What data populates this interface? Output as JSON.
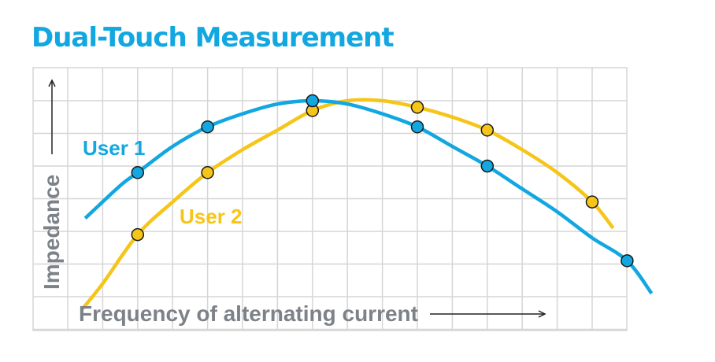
{
  "title": "Dual-Touch Measurement",
  "colors": {
    "title": "#12a7e0",
    "user1": "#12a7e0",
    "user2": "#f5c518",
    "grid": "#d6d6d6",
    "axis_text": "#7d8288"
  },
  "chart_data": {
    "type": "line",
    "title": "Dual-Touch Measurement",
    "xlabel": "Frequency of alternating current",
    "ylabel": "Impedance",
    "xlim": [
      0,
      16
    ],
    "ylim": [
      0,
      8
    ],
    "grid": true,
    "x_ticks_labeled": false,
    "y_ticks_labeled": false,
    "series": [
      {
        "name": "User 1",
        "color": "#12a7e0",
        "points": [
          [
            2,
            4.8
          ],
          [
            4,
            6.2
          ],
          [
            7,
            7.0
          ],
          [
            10,
            6.2
          ],
          [
            12,
            5.0
          ],
          [
            16,
            2.1
          ]
        ],
        "curve": [
          [
            0.5,
            3.4
          ],
          [
            1.5,
            4.4
          ],
          [
            2,
            4.8
          ],
          [
            3,
            5.6
          ],
          [
            4,
            6.2
          ],
          [
            5,
            6.6
          ],
          [
            6,
            6.9
          ],
          [
            7,
            7.0
          ],
          [
            8,
            6.9
          ],
          [
            9,
            6.6
          ],
          [
            10,
            6.2
          ],
          [
            11,
            5.6
          ],
          [
            12,
            5.0
          ],
          [
            13,
            4.3
          ],
          [
            14,
            3.6
          ],
          [
            15,
            2.8
          ],
          [
            16,
            2.1
          ],
          [
            16.7,
            1.1
          ]
        ]
      },
      {
        "name": "User 2",
        "color": "#f5c518",
        "points": [
          [
            2,
            2.9
          ],
          [
            4,
            4.8
          ],
          [
            7,
            6.7
          ],
          [
            10,
            6.8
          ],
          [
            12,
            6.1
          ],
          [
            15,
            3.9
          ]
        ],
        "curve": [
          [
            0.4,
            0.6
          ],
          [
            1,
            1.4
          ],
          [
            2,
            2.9
          ],
          [
            3,
            3.9
          ],
          [
            4,
            4.8
          ],
          [
            5,
            5.5
          ],
          [
            6,
            6.1
          ],
          [
            7,
            6.7
          ],
          [
            8,
            7.0
          ],
          [
            9,
            7.0
          ],
          [
            10,
            6.8
          ],
          [
            11,
            6.5
          ],
          [
            12,
            6.1
          ],
          [
            13,
            5.5
          ],
          [
            14,
            4.8
          ],
          [
            15,
            3.9
          ],
          [
            15.6,
            3.1
          ]
        ]
      }
    ],
    "annotations": [
      "User 1",
      "User 2"
    ]
  }
}
